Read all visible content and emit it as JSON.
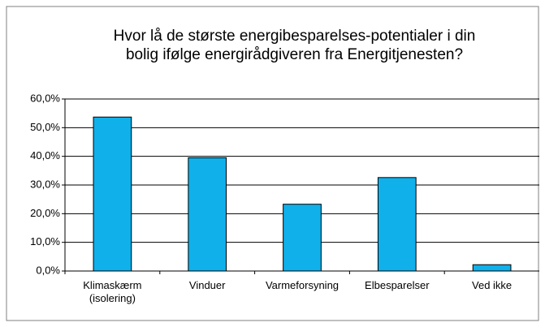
{
  "chart_data": {
    "type": "bar",
    "title": [
      "Hvor lå de største energibesparelses-potentialer i din",
      "bolig ifølge energirådgiveren fra Energitjenesten?"
    ],
    "categories": [
      "Klimaskærm\n(isolering)",
      "Vinduer",
      "Varmeforsyning",
      "Elbesparelser",
      "Ved ikke"
    ],
    "values": [
      53.7,
      39.5,
      23.3,
      32.6,
      2.2
    ],
    "color": "#10b0ea",
    "ylim": [
      0,
      60
    ],
    "yticks": [
      {
        "value": 0,
        "label": "0,0%"
      },
      {
        "value": 10,
        "label": "10,0%"
      },
      {
        "value": 20,
        "label": "20,0%"
      },
      {
        "value": 30,
        "label": "30,0%"
      },
      {
        "value": 40,
        "label": "40,0%"
      },
      {
        "value": 50,
        "label": "50,0%"
      },
      {
        "value": 60,
        "label": "60,0%"
      }
    ],
    "grid": true
  }
}
